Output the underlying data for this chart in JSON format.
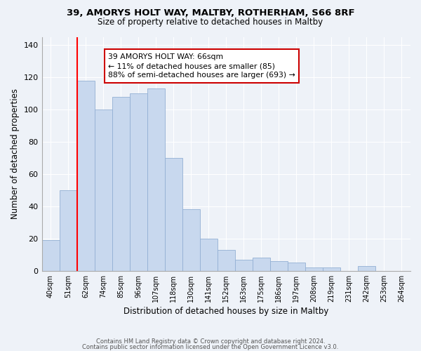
{
  "title": "39, AMORYS HOLT WAY, MALTBY, ROTHERHAM, S66 8RF",
  "subtitle": "Size of property relative to detached houses in Maltby",
  "xlabel": "Distribution of detached houses by size in Maltby",
  "ylabel": "Number of detached properties",
  "bin_labels": [
    "40sqm",
    "51sqm",
    "62sqm",
    "74sqm",
    "85sqm",
    "96sqm",
    "107sqm",
    "118sqm",
    "130sqm",
    "141sqm",
    "152sqm",
    "163sqm",
    "175sqm",
    "186sqm",
    "197sqm",
    "208sqm",
    "219sqm",
    "231sqm",
    "242sqm",
    "253sqm",
    "264sqm"
  ],
  "bar_heights": [
    19,
    50,
    118,
    100,
    108,
    110,
    113,
    70,
    38,
    20,
    13,
    7,
    8,
    6,
    5,
    2,
    2,
    0,
    3,
    0,
    0
  ],
  "bar_color": "#c8d8ee",
  "bar_edge_color": "#93b0d4",
  "ylim": [
    0,
    145
  ],
  "yticks": [
    0,
    20,
    40,
    60,
    80,
    100,
    120,
    140
  ],
  "vline_x_idx": 2,
  "annotation_text_line1": "39 AMORYS HOLT WAY: 66sqm",
  "annotation_text_line2": "← 11% of detached houses are smaller (85)",
  "annotation_text_line3": "88% of semi-detached houses are larger (693) →",
  "annotation_box_color": "#ffffff",
  "annotation_box_edge_color": "#cc0000",
  "background_color": "#eef2f8",
  "grid_color": "#ffffff",
  "footer_line1": "Contains HM Land Registry data © Crown copyright and database right 2024.",
  "footer_line2": "Contains public sector information licensed under the Open Government Licence v3.0."
}
